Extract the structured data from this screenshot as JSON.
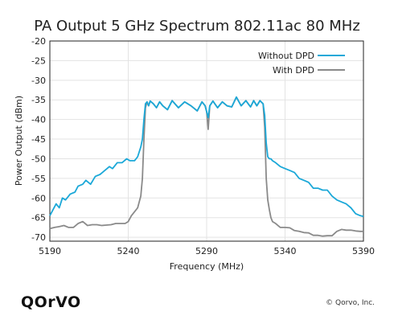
{
  "chart_data": {
    "type": "line",
    "title": "PA Output 5 GHz Spectrum 802.11ac 80 MHz",
    "xlabel": "Frequency (MHz)",
    "ylabel": "Power Output (dBm)",
    "xlim": [
      5190,
      5390
    ],
    "ylim": [
      -71,
      -20
    ],
    "xticks": [
      5190,
      5240,
      5290,
      5340,
      5390
    ],
    "yticks": [
      -20,
      -25,
      -30,
      -35,
      -40,
      -45,
      -50,
      -55,
      -60,
      -65,
      -70
    ],
    "grid": true,
    "legend_position": "top-right",
    "series": [
      {
        "name": "Without DPD",
        "color": "#1BA8D8",
        "x": [
          5190,
          5192,
          5194,
          5196,
          5198,
          5200,
          5203,
          5206,
          5208,
          5211,
          5213,
          5216,
          5219,
          5222,
          5225,
          5228,
          5230,
          5233,
          5236,
          5239,
          5241,
          5244,
          5246,
          5248,
          5249,
          5250,
          5251,
          5252,
          5253,
          5254,
          5256,
          5258,
          5260,
          5262,
          5265,
          5268,
          5272,
          5276,
          5280,
          5284,
          5287,
          5289,
          5290,
          5291,
          5292,
          5294,
          5297,
          5300,
          5303,
          5306,
          5309,
          5312,
          5315,
          5318,
          5320,
          5322,
          5324,
          5326,
          5327,
          5328,
          5329,
          5330,
          5331,
          5332,
          5334,
          5337,
          5340,
          5343,
          5346,
          5349,
          5352,
          5355,
          5358,
          5361,
          5364,
          5367,
          5370,
          5373,
          5376,
          5379,
          5382,
          5385,
          5388,
          5390
        ],
        "y": [
          -64.5,
          -63,
          -61.5,
          -62.5,
          -60,
          -60.5,
          -59,
          -58.5,
          -57,
          -56.5,
          -55.5,
          -56.5,
          -54.5,
          -54,
          -53,
          -52,
          -52.5,
          -51,
          -51,
          -50,
          -50.5,
          -50.5,
          -49.5,
          -47,
          -45,
          -40,
          -36,
          -35.5,
          -36.5,
          -35.3,
          -36,
          -37,
          -35.5,
          -36.5,
          -37.5,
          -35.2,
          -37,
          -35.5,
          -36.5,
          -37.8,
          -35.5,
          -36.5,
          -38,
          -39.5,
          -36.5,
          -35.3,
          -37,
          -35.5,
          -36.5,
          -36.8,
          -34.3,
          -36.5,
          -35.2,
          -36.8,
          -35.2,
          -36.5,
          -35.2,
          -36,
          -39,
          -46,
          -49.5,
          -50,
          -50,
          -50.5,
          -51,
          -52,
          -52.5,
          -53,
          -53.5,
          -55,
          -55.5,
          -56,
          -57.5,
          -57.5,
          -58,
          -58,
          -59.5,
          -60.5,
          -61,
          -61.5,
          -62.5,
          -64,
          -64.5,
          -64.7
        ]
      },
      {
        "name": "With DPD",
        "color": "#8A8A8A",
        "x": [
          5190,
          5193,
          5196,
          5199,
          5202,
          5205,
          5208,
          5211,
          5214,
          5217,
          5220,
          5223,
          5226,
          5229,
          5232,
          5235,
          5238,
          5240,
          5242,
          5244,
          5246,
          5248,
          5249,
          5250,
          5251,
          5252,
          5253,
          5254,
          5256,
          5258,
          5260,
          5262,
          5265,
          5268,
          5272,
          5276,
          5280,
          5284,
          5287,
          5289,
          5290,
          5291,
          5292,
          5294,
          5297,
          5300,
          5303,
          5306,
          5309,
          5312,
          5315,
          5318,
          5320,
          5322,
          5324,
          5326,
          5327,
          5328,
          5329,
          5330,
          5331,
          5332,
          5334,
          5337,
          5340,
          5343,
          5346,
          5349,
          5352,
          5355,
          5358,
          5361,
          5364,
          5367,
          5370,
          5373,
          5376,
          5379,
          5382,
          5385,
          5388,
          5390
        ],
        "y": [
          -67.8,
          -67.5,
          -67.3,
          -67,
          -67.5,
          -67.5,
          -66.5,
          -66,
          -67,
          -66.8,
          -66.8,
          -67,
          -66.9,
          -66.8,
          -66.5,
          -66.5,
          -66.5,
          -66,
          -64.5,
          -63.5,
          -62.5,
          -59.5,
          -55,
          -45,
          -37,
          -35.5,
          -36.5,
          -35.3,
          -36,
          -37,
          -35.5,
          -36.5,
          -37.5,
          -35.2,
          -37,
          -35.5,
          -36.5,
          -37.8,
          -35.5,
          -36.5,
          -38,
          -42.5,
          -36.5,
          -35.3,
          -37,
          -35.5,
          -36.5,
          -36.8,
          -34.3,
          -36.5,
          -35.2,
          -36.8,
          -35.2,
          -36.5,
          -35.2,
          -36,
          -42,
          -55,
          -60.5,
          -63,
          -65,
          -66,
          -66.5,
          -67.5,
          -67.5,
          -67.6,
          -68.3,
          -68.5,
          -68.8,
          -68.9,
          -69.5,
          -69.5,
          -69.7,
          -69.6,
          -69.6,
          -68.5,
          -68,
          -68.2,
          -68.2,
          -68.4,
          -68.5,
          -68.5
        ]
      }
    ]
  },
  "footer": {
    "logo_text": "QOrVO",
    "copyright": "© Qorvo, Inc."
  }
}
